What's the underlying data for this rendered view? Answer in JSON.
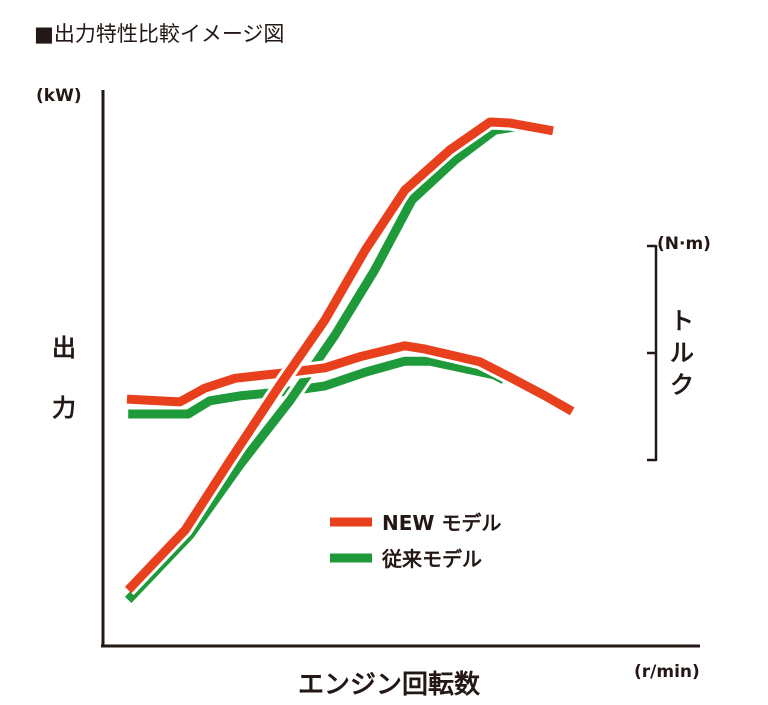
{
  "chart_data": {
    "type": "line",
    "title": "■出力特性比較イメージ図",
    "ylabel": "出力",
    "yunit": "(kW)",
    "y2label": "トルク",
    "y2unit": "(N·m)",
    "xlabel": "エンジン回転数",
    "xunit": "(r/min)",
    "xlim": [
      0,
      100
    ],
    "ylim": [
      0,
      100
    ],
    "grid": false,
    "legend_position": "bottom-center",
    "colors": {
      "new": "#e8401c",
      "old": "#1f9a3a"
    },
    "legend": [
      "NEW モデル",
      "従来モデル"
    ],
    "series": [
      {
        "name": "従来モデル トルク",
        "model": "old",
        "x": [
          4.2,
          14.2,
          17.8,
          22.8,
          31.2,
          37,
          43.7,
          50.3,
          54.5,
          65.2,
          66.8
        ],
        "y": [
          42,
          42,
          44.4,
          45.3,
          46.2,
          47.1,
          49.6,
          51.6,
          51.6,
          49.1,
          48.2
        ]
      },
      {
        "name": "従来モデル 出力",
        "model": "old",
        "x": [
          4.2,
          14.5,
          22.8,
          31.2,
          38.7,
          45.3,
          51.5,
          58.7,
          65.3,
          68.7
        ],
        "y": [
          8.2,
          20,
          32.7,
          44.5,
          56.4,
          68.2,
          80.9,
          88.2,
          93.6,
          94.2
        ]
      },
      {
        "name": "NEW モデル トルク",
        "model": "new",
        "x": [
          4,
          12.8,
          17,
          22,
          31.2,
          37,
          42.8,
          50.3,
          53.7,
          62.8,
          67.8,
          73.7,
          78.2
        ],
        "y": [
          44.7,
          44.2,
          46.7,
          48.5,
          49.6,
          50.4,
          52.4,
          54.4,
          53.8,
          51.5,
          48.7,
          45.3,
          42.5
        ]
      },
      {
        "name": "NEW モデル 出力",
        "model": "new",
        "x": [
          4.2,
          13.7,
          21.2,
          29.5,
          37,
          43.7,
          50.3,
          57.8,
          64.5,
          67.8,
          75
        ],
        "y": [
          10,
          20.9,
          33.6,
          47.3,
          59.1,
          71.8,
          82.7,
          90,
          95.1,
          94.9,
          93.5
        ]
      }
    ]
  }
}
